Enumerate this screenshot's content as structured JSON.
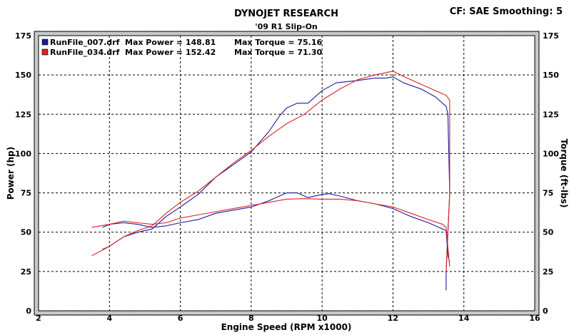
{
  "header": {
    "title": "DYNOJET RESEARCH",
    "subtitle": "'09 R1 Slip-On",
    "correction": "CF: SAE  Smoothing: 5"
  },
  "chart_data": {
    "type": "line",
    "title": "DYNOJET RESEARCH",
    "subtitle": "'09 R1 Slip-On",
    "xlabel": "Engine Speed (RPM x1000)",
    "ylabel_left": "Power (hp)",
    "ylabel_right": "Torque (ft-lbs)",
    "xlim": [
      2,
      16
    ],
    "ylim": [
      0,
      175
    ],
    "x_ticks": [
      2,
      4,
      6,
      8,
      10,
      12,
      14,
      16
    ],
    "y_ticks": [
      0,
      25,
      50,
      75,
      100,
      125,
      150,
      175
    ],
    "grid": true,
    "legend_position": "top-left",
    "legend": [
      {
        "file": "RunFile_007.drf",
        "power_text": "Max Power = 148.81",
        "torque_text": "Max Torque = 75.16",
        "color": "#1a1a9c"
      },
      {
        "file": "RunFile_034.drf",
        "power_text": "Max Power = 152.42",
        "torque_text": "Max Torque = 71.30",
        "color": "#e02020"
      }
    ],
    "series": [
      {
        "name": "RunFile_007.drf",
        "measure": "power",
        "color": "#1a1a9c",
        "points": [
          [
            3.8,
            39
          ],
          [
            4.0,
            41
          ],
          [
            4.4,
            47
          ],
          [
            4.8,
            50
          ],
          [
            5.2,
            52
          ],
          [
            5.6,
            60
          ],
          [
            6.0,
            66
          ],
          [
            6.5,
            74
          ],
          [
            7.0,
            85
          ],
          [
            7.5,
            93
          ],
          [
            8.0,
            101
          ],
          [
            8.5,
            114
          ],
          [
            8.8,
            124
          ],
          [
            9.0,
            129
          ],
          [
            9.3,
            132
          ],
          [
            9.6,
            132
          ],
          [
            10.0,
            140
          ],
          [
            10.4,
            145
          ],
          [
            11.0,
            146.5
          ],
          [
            11.5,
            148
          ],
          [
            11.8,
            148
          ],
          [
            12.0,
            148.8
          ],
          [
            12.3,
            145
          ],
          [
            12.8,
            141
          ],
          [
            13.2,
            136
          ],
          [
            13.5,
            130
          ],
          [
            13.55,
            125
          ],
          [
            13.6,
            75
          ],
          [
            13.55,
            50
          ],
          [
            13.5,
            25
          ],
          [
            13.5,
            13
          ]
        ]
      },
      {
        "name": "RunFile_034.drf",
        "measure": "power",
        "color": "#e02020",
        "points": [
          [
            3.5,
            35
          ],
          [
            4.0,
            41
          ],
          [
            4.4,
            47
          ],
          [
            4.8,
            51
          ],
          [
            5.2,
            54
          ],
          [
            5.6,
            62
          ],
          [
            6.0,
            69
          ],
          [
            6.5,
            76
          ],
          [
            7.0,
            85
          ],
          [
            7.5,
            94
          ],
          [
            8.0,
            102
          ],
          [
            8.5,
            111
          ],
          [
            9.0,
            119
          ],
          [
            9.5,
            125
          ],
          [
            10.0,
            134
          ],
          [
            10.5,
            141
          ],
          [
            11.0,
            147
          ],
          [
            11.5,
            150
          ],
          [
            12.0,
            152.4
          ],
          [
            12.3,
            149
          ],
          [
            12.8,
            144
          ],
          [
            13.2,
            140
          ],
          [
            13.5,
            137
          ],
          [
            13.6,
            134
          ],
          [
            13.6,
            125
          ],
          [
            13.6,
            75
          ],
          [
            13.55,
            50
          ],
          [
            13.5,
            25
          ]
        ]
      },
      {
        "name": "RunFile_007.drf",
        "measure": "torque",
        "color": "#1a1a9c",
        "points": [
          [
            3.8,
            53
          ],
          [
            4.0,
            55
          ],
          [
            4.4,
            56
          ],
          [
            4.8,
            55
          ],
          [
            5.2,
            53
          ],
          [
            5.6,
            54
          ],
          [
            6.0,
            56
          ],
          [
            6.5,
            58
          ],
          [
            7.0,
            62
          ],
          [
            7.5,
            64
          ],
          [
            8.0,
            66
          ],
          [
            8.5,
            70
          ],
          [
            9.0,
            75
          ],
          [
            9.3,
            75
          ],
          [
            9.6,
            72
          ],
          [
            10.0,
            74
          ],
          [
            10.2,
            74.5
          ],
          [
            10.5,
            73
          ],
          [
            11.0,
            70
          ],
          [
            11.5,
            68
          ],
          [
            12.0,
            65
          ],
          [
            12.5,
            60
          ],
          [
            13.0,
            56
          ],
          [
            13.4,
            52
          ],
          [
            13.5,
            51
          ],
          [
            13.55,
            35
          ],
          [
            13.6,
            31
          ]
        ]
      },
      {
        "name": "RunFile_034.drf",
        "measure": "torque",
        "color": "#e02020",
        "points": [
          [
            3.5,
            53
          ],
          [
            4.0,
            55
          ],
          [
            4.4,
            57
          ],
          [
            4.8,
            56
          ],
          [
            5.2,
            55
          ],
          [
            5.6,
            56
          ],
          [
            6.0,
            59
          ],
          [
            6.5,
            61
          ],
          [
            7.0,
            63
          ],
          [
            7.5,
            65
          ],
          [
            8.0,
            67
          ],
          [
            8.5,
            69
          ],
          [
            9.0,
            71
          ],
          [
            9.5,
            71.3
          ],
          [
            10.0,
            71
          ],
          [
            10.5,
            71
          ],
          [
            11.0,
            70
          ],
          [
            11.5,
            68
          ],
          [
            12.0,
            66
          ],
          [
            12.5,
            62
          ],
          [
            13.0,
            58
          ],
          [
            13.4,
            55
          ],
          [
            13.5,
            53
          ],
          [
            13.55,
            40
          ],
          [
            13.6,
            28
          ]
        ]
      }
    ]
  }
}
